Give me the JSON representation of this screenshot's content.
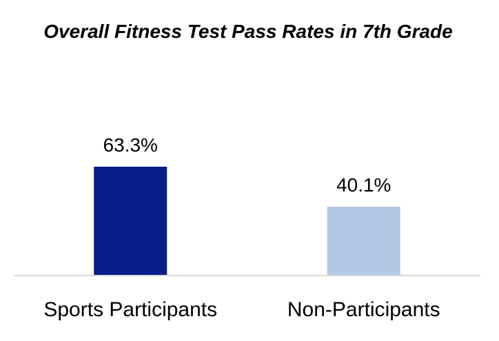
{
  "chart_data": {
    "type": "bar",
    "title": "Overall Fitness Test Pass Rates in 7th Grade",
    "categories": [
      "Sports Participants",
      "Non-Participants"
    ],
    "values": [
      63.3,
      40.1
    ],
    "data_labels": [
      "63.3%",
      "40.1%"
    ],
    "bar_colors": [
      "#081D8A",
      "#B4C7E7"
    ],
    "axis_color": "#D9D9D9",
    "xlabel": "",
    "ylabel": "",
    "ylim": [
      0,
      100
    ],
    "grid": false,
    "legend": "none"
  }
}
